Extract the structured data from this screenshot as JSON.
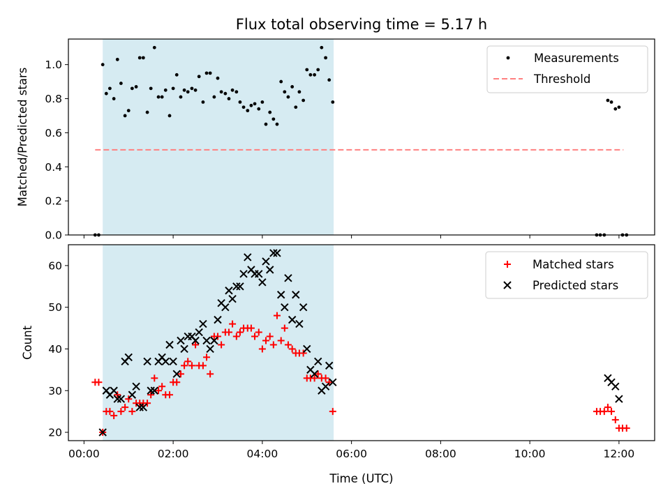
{
  "chart_data": [
    {
      "type": "scatter",
      "title": "Flux total observing time = 5.17 h",
      "xlabel": "",
      "ylabel": "Matched/Predicted stars",
      "ylim": [
        0,
        1.15
      ],
      "xlim_hours": [
        -0.35,
        12.8
      ],
      "yticks": [
        "0.0",
        "0.2",
        "0.4",
        "0.6",
        "0.8",
        "1.0"
      ],
      "ytick_values": [
        0,
        0.2,
        0.4,
        0.6,
        0.8,
        1.0
      ],
      "grid": false,
      "legend_position": "top-right",
      "shaded_span_hours": [
        0.42,
        5.6
      ],
      "colors": {
        "measurements": "#000000",
        "threshold": "#ff8080",
        "shade": "#add8e6"
      },
      "series": [
        {
          "name": "Measurements",
          "points": [
            [
              0.25,
              0.0
            ],
            [
              0.33,
              0.0
            ],
            [
              0.42,
              1.0
            ],
            [
              0.5,
              0.83
            ],
            [
              0.58,
              0.86
            ],
            [
              0.67,
              0.8
            ],
            [
              0.75,
              1.03
            ],
            [
              0.83,
              0.89
            ],
            [
              0.92,
              0.7
            ],
            [
              1.0,
              0.73
            ],
            [
              1.08,
              0.86
            ],
            [
              1.17,
              0.87
            ],
            [
              1.25,
              1.04
            ],
            [
              1.33,
              1.04
            ],
            [
              1.42,
              0.72
            ],
            [
              1.5,
              0.86
            ],
            [
              1.58,
              1.1
            ],
            [
              1.67,
              0.81
            ],
            [
              1.75,
              0.81
            ],
            [
              1.83,
              0.85
            ],
            [
              1.92,
              0.7
            ],
            [
              2.0,
              0.86
            ],
            [
              2.08,
              0.94
            ],
            [
              2.17,
              0.81
            ],
            [
              2.25,
              0.85
            ],
            [
              2.33,
              0.84
            ],
            [
              2.42,
              0.86
            ],
            [
              2.5,
              0.85
            ],
            [
              2.58,
              0.93
            ],
            [
              2.67,
              0.78
            ],
            [
              2.75,
              0.95
            ],
            [
              2.83,
              0.95
            ],
            [
              2.92,
              0.81
            ],
            [
              3.0,
              0.92
            ],
            [
              3.08,
              0.84
            ],
            [
              3.17,
              0.83
            ],
            [
              3.25,
              0.8
            ],
            [
              3.33,
              0.85
            ],
            [
              3.42,
              0.84
            ],
            [
              3.5,
              0.78
            ],
            [
              3.58,
              0.75
            ],
            [
              3.67,
              0.73
            ],
            [
              3.75,
              0.76
            ],
            [
              3.83,
              0.77
            ],
            [
              3.92,
              0.74
            ],
            [
              4.0,
              0.78
            ],
            [
              4.08,
              0.65
            ],
            [
              4.17,
              0.72
            ],
            [
              4.25,
              0.68
            ],
            [
              4.33,
              0.65
            ],
            [
              4.42,
              0.9
            ],
            [
              4.5,
              0.84
            ],
            [
              4.58,
              0.81
            ],
            [
              4.67,
              0.87
            ],
            [
              4.75,
              0.75
            ],
            [
              4.83,
              0.84
            ],
            [
              4.92,
              0.79
            ],
            [
              5.0,
              0.97
            ],
            [
              5.08,
              0.94
            ],
            [
              5.17,
              0.94
            ],
            [
              5.25,
              0.97
            ],
            [
              5.33,
              1.1
            ],
            [
              5.42,
              1.04
            ],
            [
              5.5,
              0.91
            ],
            [
              5.58,
              0.78
            ],
            [
              11.5,
              0.0
            ],
            [
              11.58,
              0.0
            ],
            [
              11.67,
              0.0
            ],
            [
              11.75,
              0.79
            ],
            [
              11.83,
              0.78
            ],
            [
              11.92,
              0.74
            ],
            [
              12.0,
              0.75
            ],
            [
              12.08,
              0.0
            ],
            [
              12.17,
              0.0
            ]
          ]
        },
        {
          "name": "Threshold",
          "line": [
            [
              0.25,
              0.5
            ],
            [
              12.1,
              0.5
            ]
          ]
        }
      ]
    },
    {
      "type": "scatter",
      "title": "",
      "xlabel": "Time (UTC)",
      "ylabel": "Count",
      "ylim": [
        18,
        65
      ],
      "xlim_hours": [
        -0.35,
        12.8
      ],
      "yticks": [
        "20",
        "30",
        "40",
        "50",
        "60"
      ],
      "ytick_values": [
        20,
        30,
        40,
        50,
        60
      ],
      "xticks": [
        "00:00",
        "02:00",
        "04:00",
        "06:00",
        "08:00",
        "10:00",
        "12:00"
      ],
      "xtick_values": [
        0,
        2,
        4,
        6,
        8,
        10,
        12
      ],
      "grid": false,
      "legend_position": "top-right",
      "shaded_span_hours": [
        0.42,
        5.6
      ],
      "colors": {
        "matched": "#ff0000",
        "predicted": "#000000",
        "shade": "#add8e6"
      },
      "series": [
        {
          "name": "Matched stars",
          "points": [
            [
              0.25,
              32
            ],
            [
              0.33,
              32
            ],
            [
              0.42,
              20
            ],
            [
              0.5,
              25
            ],
            [
              0.58,
              25
            ],
            [
              0.67,
              24
            ],
            [
              0.75,
              29
            ],
            [
              0.83,
              25
            ],
            [
              0.92,
              26
            ],
            [
              1.0,
              28
            ],
            [
              1.08,
              25
            ],
            [
              1.17,
              27
            ],
            [
              1.25,
              27
            ],
            [
              1.33,
              27
            ],
            [
              1.42,
              27
            ],
            [
              1.5,
              29
            ],
            [
              1.58,
              33
            ],
            [
              1.67,
              30
            ],
            [
              1.75,
              31
            ],
            [
              1.83,
              29
            ],
            [
              1.92,
              29
            ],
            [
              2.0,
              32
            ],
            [
              2.08,
              32
            ],
            [
              2.17,
              34
            ],
            [
              2.25,
              36
            ],
            [
              2.33,
              37
            ],
            [
              2.42,
              36
            ],
            [
              2.5,
              41
            ],
            [
              2.58,
              36
            ],
            [
              2.67,
              36
            ],
            [
              2.75,
              38
            ],
            [
              2.83,
              34
            ],
            [
              2.92,
              43
            ],
            [
              3.0,
              43
            ],
            [
              3.08,
              41
            ],
            [
              3.17,
              44
            ],
            [
              3.25,
              44
            ],
            [
              3.33,
              46
            ],
            [
              3.42,
              43
            ],
            [
              3.5,
              44
            ],
            [
              3.58,
              45
            ],
            [
              3.67,
              45
            ],
            [
              3.75,
              45
            ],
            [
              3.83,
              43
            ],
            [
              3.92,
              44
            ],
            [
              4.0,
              40
            ],
            [
              4.08,
              42
            ],
            [
              4.17,
              43
            ],
            [
              4.25,
              41
            ],
            [
              4.33,
              48
            ],
            [
              4.42,
              42
            ],
            [
              4.5,
              45
            ],
            [
              4.58,
              41
            ],
            [
              4.67,
              40
            ],
            [
              4.75,
              39
            ],
            [
              4.83,
              39
            ],
            [
              4.92,
              39
            ],
            [
              5.0,
              33
            ],
            [
              5.08,
              33
            ],
            [
              5.17,
              33
            ],
            [
              5.25,
              34
            ],
            [
              5.33,
              33
            ],
            [
              5.42,
              33
            ],
            [
              5.5,
              32
            ],
            [
              5.58,
              25
            ],
            [
              11.5,
              25
            ],
            [
              11.58,
              25
            ],
            [
              11.67,
              25
            ],
            [
              11.75,
              26
            ],
            [
              11.83,
              25
            ],
            [
              11.92,
              23
            ],
            [
              12.0,
              21
            ],
            [
              12.08,
              21
            ],
            [
              12.17,
              21
            ]
          ]
        },
        {
          "name": "Predicted stars",
          "points": [
            [
              0.42,
              20
            ],
            [
              0.5,
              30
            ],
            [
              0.58,
              29
            ],
            [
              0.67,
              30
            ],
            [
              0.75,
              28
            ],
            [
              0.83,
              28
            ],
            [
              0.92,
              37
            ],
            [
              1.0,
              38
            ],
            [
              1.08,
              29
            ],
            [
              1.17,
              31
            ],
            [
              1.25,
              26
            ],
            [
              1.33,
              26
            ],
            [
              1.42,
              37
            ],
            [
              1.5,
              30
            ],
            [
              1.58,
              30
            ],
            [
              1.67,
              37
            ],
            [
              1.75,
              38
            ],
            [
              1.83,
              37
            ],
            [
              1.92,
              41
            ],
            [
              2.0,
              37
            ],
            [
              2.08,
              34
            ],
            [
              2.17,
              42
            ],
            [
              2.25,
              40
            ],
            [
              2.33,
              43
            ],
            [
              2.42,
              43
            ],
            [
              2.5,
              42
            ],
            [
              2.58,
              44
            ],
            [
              2.67,
              46
            ],
            [
              2.75,
              42
            ],
            [
              2.83,
              40
            ],
            [
              2.92,
              42
            ],
            [
              3.0,
              47
            ],
            [
              3.08,
              51
            ],
            [
              3.17,
              50
            ],
            [
              3.25,
              54
            ],
            [
              3.33,
              52
            ],
            [
              3.42,
              55
            ],
            [
              3.5,
              55
            ],
            [
              3.58,
              58
            ],
            [
              3.67,
              62
            ],
            [
              3.75,
              59
            ],
            [
              3.83,
              58
            ],
            [
              3.92,
              58
            ],
            [
              4.0,
              56
            ],
            [
              4.08,
              61
            ],
            [
              4.17,
              59
            ],
            [
              4.25,
              63
            ],
            [
              4.33,
              63
            ],
            [
              4.42,
              53
            ],
            [
              4.5,
              50
            ],
            [
              4.58,
              57
            ],
            [
              4.67,
              47
            ],
            [
              4.75,
              53
            ],
            [
              4.83,
              46
            ],
            [
              4.92,
              50
            ],
            [
              5.0,
              40
            ],
            [
              5.08,
              35
            ],
            [
              5.17,
              34
            ],
            [
              5.25,
              37
            ],
            [
              5.33,
              30
            ],
            [
              5.42,
              31
            ],
            [
              5.5,
              36
            ],
            [
              5.58,
              32
            ],
            [
              11.75,
              33
            ],
            [
              11.83,
              32
            ],
            [
              11.92,
              31
            ],
            [
              12.0,
              28
            ]
          ]
        }
      ]
    }
  ]
}
